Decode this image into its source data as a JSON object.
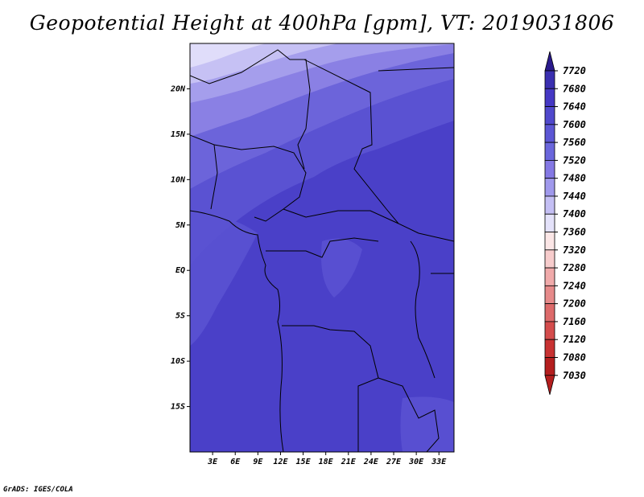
{
  "title": "Geopotential Height at 400hPa [gpm], VT: 2019031806",
  "footer": "GrADS: IGES/COLA",
  "map": {
    "lon_range": [
      0,
      35
    ],
    "lat_range": [
      -20,
      25
    ],
    "x_ticks": [
      "3E",
      "6E",
      "9E",
      "12E",
      "15E",
      "18E",
      "21E",
      "24E",
      "27E",
      "30E",
      "33E"
    ],
    "y_ticks": [
      "20N",
      "15N",
      "10N",
      "5N",
      "EQ",
      "5S",
      "10S",
      "15S"
    ]
  },
  "colorbar": {
    "labels": [
      "7720",
      "7680",
      "7640",
      "7600",
      "7560",
      "7520",
      "7480",
      "7440",
      "7400",
      "7360",
      "7320",
      "7280",
      "7240",
      "7200",
      "7160",
      "7120",
      "7080",
      "7030"
    ],
    "colors": [
      "#2a1a8c",
      "#3a2fb0",
      "#4538c4",
      "#5048cc",
      "#5c56d4",
      "#6a66dc",
      "#8478e4",
      "#a099ec",
      "#c4bff4",
      "#e4e2fa",
      "#fbe6e6",
      "#f7cccc",
      "#f0aaaa",
      "#e68a8a",
      "#dd6a6a",
      "#d44c4c",
      "#c83232",
      "#b41e1e"
    ]
  }
}
